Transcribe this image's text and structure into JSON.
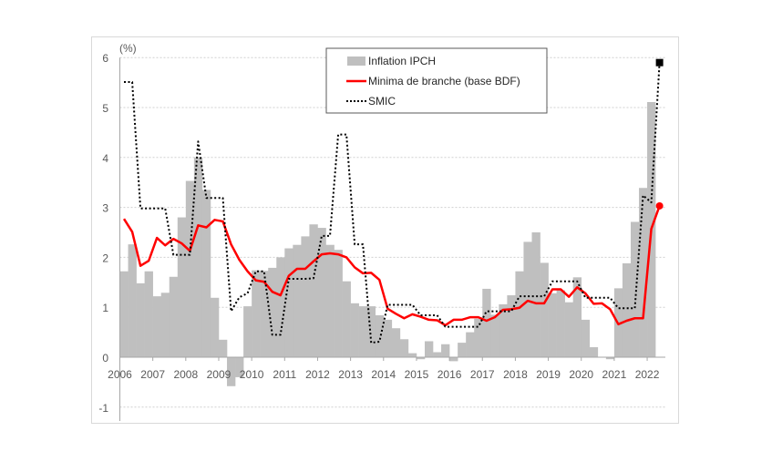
{
  "chart_data": {
    "type": "bar+line",
    "unit_label": "(%)",
    "ylim": [
      -1,
      6
    ],
    "yticks": [
      -1,
      0,
      1,
      2,
      3,
      4,
      5,
      6
    ],
    "xticks": [
      "2006",
      "2007",
      "2008",
      "2009",
      "2010",
      "2011",
      "2012",
      "2013",
      "2014",
      "2015",
      "2016",
      "2017",
      "2018",
      "2019",
      "2020",
      "2021",
      "2022"
    ],
    "x_start_year": 2006,
    "frequency": "quarterly",
    "grid": "horizontal dashed",
    "legend": {
      "position": "top-center",
      "entries": [
        "Inflation IPCH",
        "Minima de branche (base BDF)",
        "SMIC"
      ]
    },
    "series": [
      {
        "name": "Inflation IPCH",
        "type": "bar",
        "color": "#bfbfbf",
        "values": [
          1.72,
          2.26,
          1.48,
          1.72,
          1.22,
          1.29,
          1.61,
          2.8,
          3.53,
          4.0,
          3.35,
          1.19,
          0.35,
          -0.58,
          -0.4,
          1.02,
          1.74,
          1.73,
          1.79,
          2.0,
          2.18,
          2.25,
          2.42,
          2.66,
          2.59,
          2.25,
          2.15,
          1.52,
          1.08,
          1.02,
          1.02,
          0.84,
          0.75,
          0.58,
          0.36,
          0.08,
          -0.04,
          0.32,
          0.1,
          0.26,
          -0.08,
          0.29,
          0.5,
          0.77,
          1.37,
          0.85,
          1.06,
          1.24,
          1.72,
          2.31,
          2.5,
          1.89,
          1.28,
          1.34,
          1.1,
          1.6,
          0.75,
          0.2,
          0.0,
          -0.04,
          1.38,
          1.88,
          2.71,
          3.39,
          5.11
        ]
      },
      {
        "name": "Minima de branche (base BDF)",
        "type": "line",
        "color": "#ff0000",
        "last_marker": "circle",
        "values": [
          2.77,
          2.51,
          1.83,
          1.93,
          2.39,
          2.24,
          2.37,
          2.28,
          2.13,
          2.64,
          2.6,
          2.75,
          2.72,
          2.26,
          1.95,
          1.72,
          1.54,
          1.51,
          1.31,
          1.24,
          1.63,
          1.77,
          1.77,
          1.92,
          2.06,
          2.08,
          2.06,
          2.0,
          1.8,
          1.68,
          1.69,
          1.55,
          0.97,
          0.87,
          0.78,
          0.86,
          0.81,
          0.75,
          0.74,
          0.64,
          0.75,
          0.75,
          0.8,
          0.8,
          0.73,
          0.8,
          0.95,
          0.96,
          0.99,
          1.13,
          1.08,
          1.08,
          1.36,
          1.36,
          1.21,
          1.4,
          1.28,
          1.07,
          1.08,
          0.96,
          0.66,
          0.73,
          0.78,
          0.78,
          2.57,
          3.03
        ]
      },
      {
        "name": "SMIC",
        "type": "line",
        "style": "dotted",
        "color": "#000000",
        "last_marker": "square",
        "values": [
          5.51,
          5.51,
          2.98,
          2.98,
          2.98,
          2.98,
          2.05,
          2.05,
          2.05,
          4.32,
          3.19,
          3.19,
          3.19,
          0.92,
          1.2,
          1.28,
          1.72,
          1.72,
          0.45,
          0.45,
          1.57,
          1.57,
          1.57,
          1.58,
          2.43,
          2.43,
          4.46,
          4.46,
          2.26,
          2.26,
          0.29,
          0.31,
          1.05,
          1.05,
          1.05,
          1.05,
          0.84,
          0.84,
          0.84,
          0.61,
          0.61,
          0.61,
          0.61,
          0.61,
          0.92,
          0.92,
          0.92,
          0.92,
          1.22,
          1.22,
          1.22,
          1.22,
          1.52,
          1.52,
          1.52,
          1.52,
          1.19,
          1.19,
          1.19,
          1.19,
          0.98,
          0.98,
          0.98,
          3.24,
          3.1,
          5.9
        ]
      }
    ]
  }
}
